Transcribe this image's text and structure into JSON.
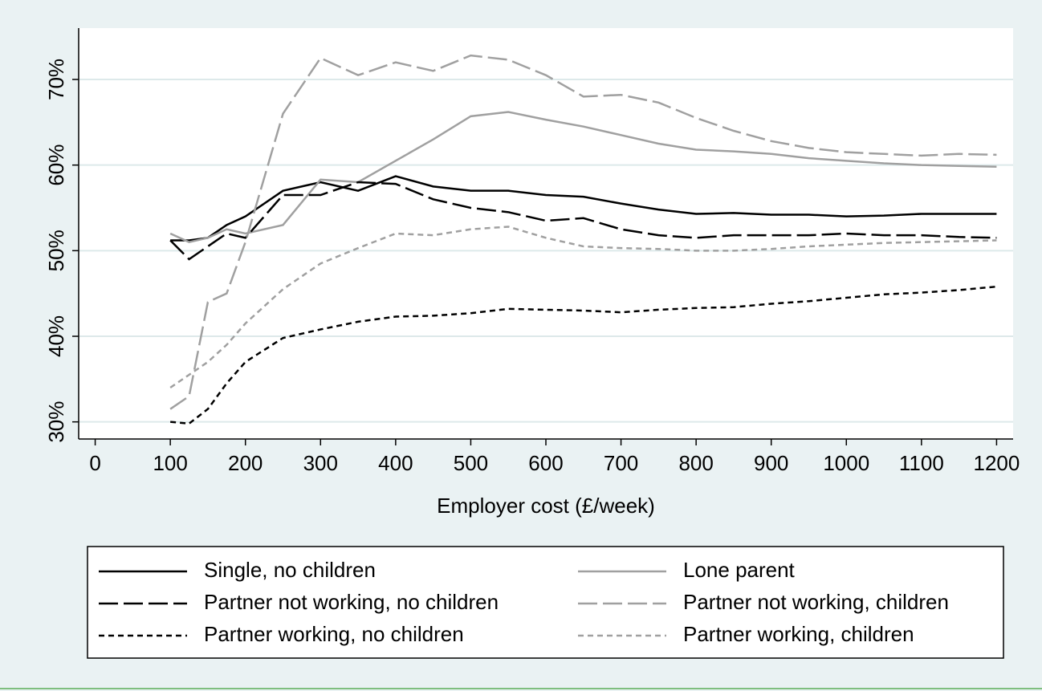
{
  "chart_data": {
    "type": "line",
    "xlabel": "Employer cost (£/week)",
    "x": [
      100,
      125,
      150,
      175,
      200,
      250,
      300,
      350,
      400,
      450,
      500,
      550,
      600,
      650,
      700,
      750,
      800,
      850,
      900,
      950,
      1000,
      1050,
      1100,
      1150,
      1200
    ],
    "xlim": [
      -22,
      1222
    ],
    "xticks": [
      0,
      100,
      200,
      300,
      400,
      500,
      600,
      700,
      800,
      900,
      1000,
      1100,
      1200
    ],
    "ylim": [
      28,
      76
    ],
    "yticks": [
      {
        "value": 30,
        "label": "30%"
      },
      {
        "value": 40,
        "label": "40%"
      },
      {
        "value": 50,
        "label": "50%"
      },
      {
        "value": 60,
        "label": "60%"
      },
      {
        "value": 70,
        "label": "70%"
      }
    ],
    "grid": true,
    "series": [
      {
        "name": "Single, no children",
        "color": "#000000",
        "dash": "solid",
        "values": [
          51.2,
          51.2,
          51.5,
          53,
          54,
          57,
          58,
          57,
          58.7,
          57.5,
          57,
          57,
          56.5,
          56.3,
          55.5,
          54.8,
          54.3,
          54.4,
          54.2,
          54.2,
          54,
          54.1,
          54.3,
          54.3,
          54.3
        ]
      },
      {
        "name": "Lone parent",
        "color": "#a0a0a0",
        "dash": "solid",
        "values": [
          52,
          51,
          51.5,
          52.5,
          52,
          53,
          58.3,
          58,
          60.5,
          63,
          65.7,
          66.2,
          65.3,
          64.5,
          63.5,
          62.5,
          61.8,
          61.6,
          61.3,
          60.8,
          60.5,
          60.2,
          60,
          59.9,
          59.8
        ]
      },
      {
        "name": "Partner not working, no children",
        "color": "#000000",
        "dash": "long",
        "values": [
          51.2,
          49,
          50.5,
          52,
          51.5,
          56.5,
          56.5,
          58,
          57.8,
          56,
          55,
          54.5,
          53.5,
          53.8,
          52.5,
          51.8,
          51.5,
          51.8,
          51.8,
          51.8,
          52,
          51.8,
          51.8,
          51.6,
          51.5
        ]
      },
      {
        "name": "Partner not working, children",
        "color": "#a0a0a0",
        "dash": "long",
        "values": [
          31.5,
          33,
          44,
          45,
          51,
          66,
          72.5,
          70.5,
          72,
          71,
          72.8,
          72.3,
          70.5,
          68,
          68.2,
          67.3,
          65.5,
          64,
          62.8,
          62,
          61.5,
          61.3,
          61.1,
          61.3,
          61.2
        ]
      },
      {
        "name": "Partner working, no children",
        "color": "#000000",
        "dash": "short",
        "values": [
          30,
          29.8,
          31.5,
          34.5,
          37,
          39.8,
          40.8,
          41.7,
          42.3,
          42.4,
          42.7,
          43.2,
          43.1,
          43,
          42.8,
          43.1,
          43.3,
          43.4,
          43.8,
          44.1,
          44.5,
          44.9,
          45.1,
          45.4,
          45.8
        ]
      },
      {
        "name": "Partner working, children",
        "color": "#a0a0a0",
        "dash": "short",
        "values": [
          34,
          35.5,
          37,
          39,
          41.5,
          45.5,
          48.5,
          50.3,
          52,
          51.8,
          52.5,
          52.8,
          51.5,
          50.5,
          50.3,
          50.2,
          50,
          50,
          50.2,
          50.5,
          50.7,
          50.9,
          51,
          51.1,
          51.2
        ]
      }
    ]
  }
}
